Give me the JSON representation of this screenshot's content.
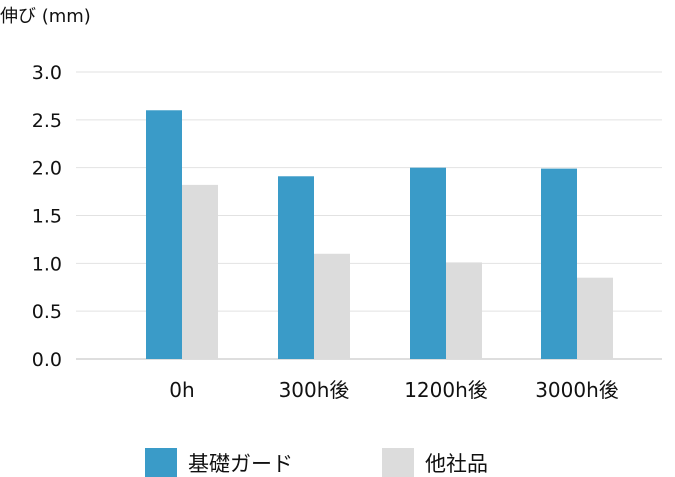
{
  "chart_data": {
    "type": "bar",
    "ylabel": "伸び (mm)",
    "categories": [
      "0h",
      "300h後",
      "1200h後",
      "3000h後"
    ],
    "series": [
      {
        "name": "基礎ガード",
        "color": "#3a9bc8",
        "values": [
          2.6,
          1.91,
          2.0,
          1.99
        ]
      },
      {
        "name": "他社品",
        "color": "#dcdcdc",
        "values": [
          1.82,
          1.1,
          1.01,
          0.85
        ]
      }
    ],
    "ylim": [
      0,
      3.0
    ],
    "yticks": [
      "0.0",
      "0.5",
      "1.0",
      "1.5",
      "2.0",
      "2.5",
      "3.0"
    ],
    "grid": true,
    "legend": "bottom"
  }
}
